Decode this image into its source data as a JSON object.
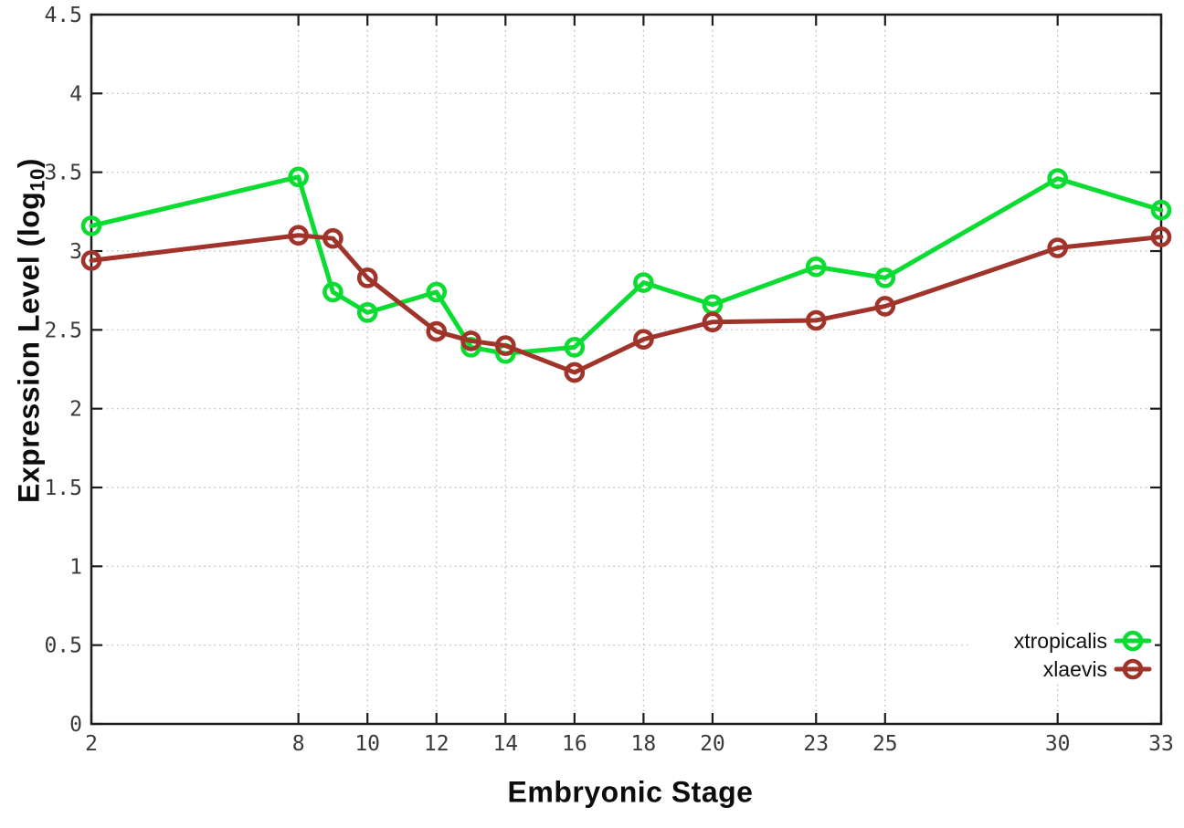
{
  "chart_data": {
    "type": "line",
    "title": "",
    "xlabel": "Embryonic Stage",
    "ylabel": {
      "prefix": "Expression Level (log",
      "subscript": "10",
      "suffix": ")"
    },
    "x": [
      2,
      8,
      9,
      10,
      12,
      13,
      14,
      16,
      18,
      20,
      23,
      25,
      30,
      33
    ],
    "xlim": [
      2,
      33
    ],
    "ylim": [
      0,
      4.5
    ],
    "xtick_values": [
      2,
      8,
      10,
      12,
      14,
      16,
      18,
      20,
      23,
      25,
      30,
      33
    ],
    "xtick_labels": [
      "2",
      "8",
      "10",
      "12",
      "14",
      "16",
      "18",
      "20",
      "23",
      "25",
      "30",
      "33"
    ],
    "ytick_values": [
      0,
      0.5,
      1,
      1.5,
      2,
      2.5,
      3,
      3.5,
      4,
      4.5
    ],
    "ytick_labels": [
      "0",
      "0.5",
      "1",
      "1.5",
      "2",
      "2.5",
      "3",
      "3.5",
      "4",
      "4.5"
    ],
    "grid": true,
    "legend_position": "bottom-right",
    "series": [
      {
        "name": "xtropicalis",
        "color": "#0bdc32",
        "marker": "open-circle",
        "values": [
          3.16,
          3.47,
          2.74,
          2.61,
          2.74,
          2.39,
          2.35,
          2.39,
          2.8,
          2.66,
          2.9,
          2.83,
          3.46,
          3.26
        ]
      },
      {
        "name": "xlaevis",
        "color": "#a0342b",
        "marker": "open-circle",
        "values": [
          2.94,
          3.1,
          3.08,
          2.83,
          2.49,
          2.43,
          2.4,
          2.23,
          2.44,
          2.55,
          2.56,
          2.65,
          3.02,
          3.09
        ]
      }
    ],
    "colors": {
      "grid": "#bdbdbd",
      "axis": "#1c1c1c",
      "tick_label": "#3a3a3a",
      "legend_text": "#111111",
      "background": "#ffffff"
    }
  }
}
